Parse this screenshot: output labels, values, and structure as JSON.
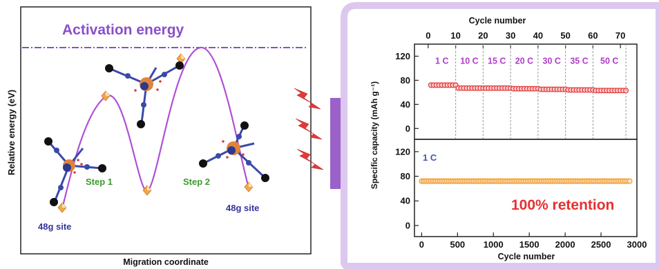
{
  "left_panel": {
    "title": "Activation energy",
    "ylabel": "Relative energy (eV)",
    "xlabel": "Migration coordinate",
    "steps": [
      "Step 1",
      "Step 2"
    ],
    "sites": [
      "48g site",
      "48g site"
    ]
  },
  "right_panel": {
    "top_xlabel": "Cycle number",
    "bottom_xlabel": "Cycle number",
    "ylabel": "Specific capacity (mAh g⁻¹)",
    "retention": "100% retention",
    "top_rate_label": "1 C",
    "rate_labels": [
      "1 C",
      "10 C",
      "15 C",
      "20 C",
      "30 C",
      "35 C",
      "50 C"
    ]
  },
  "colors": {
    "title_purple": "#8a4fc9",
    "curve_purple": "#b04fd6",
    "frame_lilac": "#dcc8ee",
    "bar_purple": "#9b61c9",
    "lightning": "#e03a3a",
    "red_markers": "#e23b3b",
    "orange_markers": "#f39a2d",
    "step_green": "#3c9a2d",
    "site_navy": "#333399",
    "rate_magenta": "#b03cc8",
    "retention_red": "#e53030"
  },
  "chart_data": [
    {
      "type": "line",
      "title": "Activation energy",
      "xlabel": "Migration coordinate",
      "ylabel": "Relative energy (eV)",
      "description_points": [
        "48g site",
        "saddle",
        "intermediate",
        "saddle",
        "48g site"
      ],
      "x": [
        0,
        1,
        2,
        3,
        4
      ],
      "y": [
        0.0,
        0.72,
        0.05,
        1.0,
        0.1
      ]
    },
    {
      "type": "scatter",
      "panel": "top",
      "xlabel": "Cycle number",
      "ylabel": "Specific capacity (mAh g⁻¹)",
      "xlim": [
        -5,
        76
      ],
      "xticks": [
        0,
        10,
        20,
        30,
        40,
        50,
        60,
        70
      ],
      "ylim": [
        -18,
        140
      ],
      "yticks": [
        0,
        40,
        80,
        120
      ],
      "rate_segments": [
        {
          "label": "1 C",
          "x_start": 0,
          "x_end": 10
        },
        {
          "label": "10 C",
          "x_start": 10,
          "x_end": 20
        },
        {
          "label": "15 C",
          "x_start": 20,
          "x_end": 30
        },
        {
          "label": "20 C",
          "x_start": 30,
          "x_end": 40
        },
        {
          "label": "30 C",
          "x_start": 40,
          "x_end": 50
        },
        {
          "label": "35 C",
          "x_start": 50,
          "x_end": 60
        },
        {
          "label": "50 C",
          "x_start": 60,
          "x_end": 72
        }
      ],
      "series": [
        {
          "values_by_segment": [
            72,
            67,
            67,
            66,
            65,
            64,
            63
          ]
        }
      ]
    },
    {
      "type": "scatter",
      "panel": "bottom",
      "xlabel": "Cycle number",
      "ylabel": "Specific capacity (mAh g⁻¹)",
      "xlim": [
        -100,
        3000
      ],
      "xticks": [
        0,
        500,
        1000,
        1500,
        2000,
        2500,
        3000
      ],
      "ylim": [
        -18,
        140
      ],
      "yticks": [
        0,
        40,
        80,
        120
      ],
      "annotation": "1 C",
      "x_start": 0,
      "x_end": 2900,
      "y": 72
    }
  ]
}
